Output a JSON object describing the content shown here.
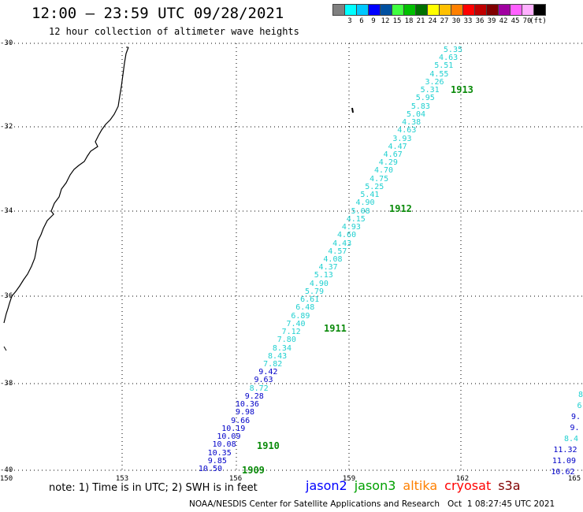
{
  "header": {
    "title": "12:00 — 23:59 UTC 09/28/2021",
    "subtitle": "12 hour collection of altimeter wave heights"
  },
  "legend": {
    "unit": "(ft)",
    "bins": [
      {
        "label": "",
        "color": "#808080"
      },
      {
        "label": "3",
        "color": "#00ffff"
      },
      {
        "label": "6",
        "color": "#00c8ff"
      },
      {
        "label": "9",
        "color": "#0000ff"
      },
      {
        "label": "12",
        "color": "#0050a0"
      },
      {
        "label": "15",
        "color": "#40ff40"
      },
      {
        "label": "18",
        "color": "#00c000"
      },
      {
        "label": "21",
        "color": "#007000"
      },
      {
        "label": "24",
        "color": "#ffff00"
      },
      {
        "label": "27",
        "color": "#ffc000"
      },
      {
        "label": "30",
        "color": "#ff8000"
      },
      {
        "label": "33",
        "color": "#ff0000"
      },
      {
        "label": "36",
        "color": "#c00000"
      },
      {
        "label": "39",
        "color": "#800000"
      },
      {
        "label": "42",
        "color": "#a000a0"
      },
      {
        "label": "45",
        "color": "#ff60ff"
      },
      {
        "label": "70",
        "color": "#ffb0ff"
      },
      {
        "label": "",
        "color": "#000000"
      }
    ]
  },
  "map": {
    "lat_labels": [
      "-30",
      "-32",
      "-34",
      "-36",
      "-38",
      "-40"
    ],
    "lon_labels": [
      "150",
      "153",
      "156",
      "159",
      "162",
      "165"
    ],
    "lat_range": [
      -40,
      -30
    ],
    "lon_range": [
      150,
      165
    ]
  },
  "swh_colors": {
    "cyan": "#20d0d0",
    "blue": "#0000c8"
  },
  "swh_points": [
    {
      "v": "5.35",
      "c": "cyan"
    },
    {
      "v": "4.63",
      "c": "cyan"
    },
    {
      "v": "5.51",
      "c": "cyan"
    },
    {
      "v": "4.55",
      "c": "cyan"
    },
    {
      "v": "3.26",
      "c": "cyan"
    },
    {
      "v": "5.31",
      "c": "cyan"
    },
    {
      "v": "5.95",
      "c": "cyan"
    },
    {
      "v": "5.83",
      "c": "cyan"
    },
    {
      "v": "5.04",
      "c": "cyan"
    },
    {
      "v": "4.38",
      "c": "cyan"
    },
    {
      "v": "4.63",
      "c": "cyan"
    },
    {
      "v": "3.93",
      "c": "cyan"
    },
    {
      "v": "4.47",
      "c": "cyan"
    },
    {
      "v": "4.67",
      "c": "cyan"
    },
    {
      "v": "4.29",
      "c": "cyan"
    },
    {
      "v": "4.70",
      "c": "cyan"
    },
    {
      "v": "4.75",
      "c": "cyan"
    },
    {
      "v": "5.25",
      "c": "cyan"
    },
    {
      "v": "5.41",
      "c": "cyan"
    },
    {
      "v": "4.90",
      "c": "cyan"
    },
    {
      "v": "5.08",
      "c": "cyan"
    },
    {
      "v": "4.15",
      "c": "cyan"
    },
    {
      "v": "4.93",
      "c": "cyan"
    },
    {
      "v": "4.60",
      "c": "cyan"
    },
    {
      "v": "4.43",
      "c": "cyan"
    },
    {
      "v": "4.57",
      "c": "cyan"
    },
    {
      "v": "4.08",
      "c": "cyan"
    },
    {
      "v": "4.37",
      "c": "cyan"
    },
    {
      "v": "5.13",
      "c": "cyan"
    },
    {
      "v": "4.90",
      "c": "cyan"
    },
    {
      "v": "5.79",
      "c": "cyan"
    },
    {
      "v": "6.61",
      "c": "cyan"
    },
    {
      "v": "6.48",
      "c": "cyan"
    },
    {
      "v": "6.89",
      "c": "cyan"
    },
    {
      "v": "7.40",
      "c": "cyan"
    },
    {
      "v": "7.12",
      "c": "cyan"
    },
    {
      "v": "7.80",
      "c": "cyan"
    },
    {
      "v": "8.34",
      "c": "cyan"
    },
    {
      "v": "8.43",
      "c": "cyan"
    },
    {
      "v": "7.82",
      "c": "cyan"
    },
    {
      "v": "9.42",
      "c": "blue"
    },
    {
      "v": "9.63",
      "c": "blue"
    },
    {
      "v": "8.72",
      "c": "cyan"
    },
    {
      "v": "9.28",
      "c": "blue"
    },
    {
      "v": "10.36",
      "c": "blue"
    },
    {
      "v": "9.98",
      "c": "blue"
    },
    {
      "v": "9.66",
      "c": "blue"
    },
    {
      "v": "10.19",
      "c": "blue"
    },
    {
      "v": "10.09",
      "c": "blue"
    },
    {
      "v": "10.08",
      "c": "blue"
    },
    {
      "v": "10.35",
      "c": "blue"
    },
    {
      "v": "9.85",
      "c": "blue"
    },
    {
      "v": "10.50",
      "c": "blue"
    }
  ],
  "east_points": [
    {
      "v": "8",
      "c": "cyan"
    },
    {
      "v": "6",
      "c": "cyan"
    },
    {
      "v": "9.",
      "c": "blue"
    },
    {
      "v": "9.",
      "c": "blue"
    },
    {
      "v": "8.4",
      "c": "cyan"
    },
    {
      "v": "11.32",
      "c": "blue"
    },
    {
      "v": "11.09",
      "c": "blue"
    },
    {
      "v": "10.62",
      "c": "blue"
    }
  ],
  "passes": [
    "1913",
    "1912",
    "1911",
    "1910",
    "1909"
  ],
  "note": "note: 1) Time is in UTC; 2) SWH is in feet",
  "satellites": [
    {
      "name": "jason2",
      "color": "#0000ff"
    },
    {
      "name": "jason3",
      "color": "#00a000"
    },
    {
      "name": "altika",
      "color": "#ff8000"
    },
    {
      "name": "cryosat",
      "color": "#ff0000"
    },
    {
      "name": "s3a",
      "color": "#800000"
    }
  ],
  "footer": "NOAA/NESDIS Center for Satellite Applications and Research   Oct  1 08:27:45 UTC 2021"
}
